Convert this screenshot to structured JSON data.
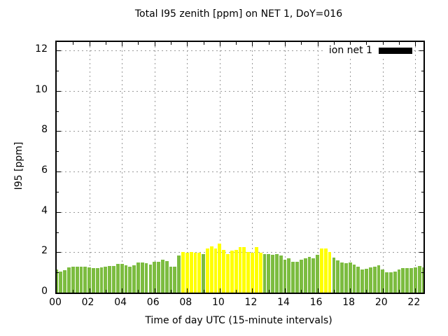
{
  "title": "Total I95 zenith [ppm] on NET 1, DoY=016",
  "legend": {
    "label": "ion net 1",
    "swatch_color": "#000000"
  },
  "x_axis": {
    "label": "Time of day UTC (15-minute intervals)",
    "tick_labels": [
      "00",
      "02",
      "04",
      "06",
      "08",
      "10",
      "12",
      "14",
      "16",
      "18",
      "20",
      "22"
    ]
  },
  "y_axis": {
    "label": "I95 [ppm]",
    "tick_labels": [
      "0",
      "2",
      "4",
      "6",
      "8",
      "10",
      "12"
    ]
  },
  "colors": {
    "bar_green": "#7cbc40",
    "bar_yellow": "#ffff00",
    "grid": "#9a9a9a",
    "axis": "#000000",
    "background": "#ffffff",
    "legend_swatch": "#000000"
  },
  "chart_data": {
    "type": "bar",
    "title": "Total I95 zenith [ppm] on NET 1, DoY=016",
    "xlabel": "Time of day UTC (15-minute intervals)",
    "ylabel": "I95 [ppm]",
    "legend_position": "top-right-inside",
    "grid": true,
    "xlim_hours": [
      0,
      22.5
    ],
    "ylim": [
      0,
      12.42
    ],
    "x_step_hours": 0.25,
    "times": [
      "00:00",
      "00:15",
      "00:30",
      "00:45",
      "01:00",
      "01:15",
      "01:30",
      "01:45",
      "02:00",
      "02:15",
      "02:30",
      "02:45",
      "03:00",
      "03:15",
      "03:30",
      "03:45",
      "04:00",
      "04:15",
      "04:30",
      "04:45",
      "05:00",
      "05:15",
      "05:30",
      "05:45",
      "06:00",
      "06:15",
      "06:30",
      "06:45",
      "07:00",
      "07:15",
      "07:30",
      "07:45",
      "08:00",
      "08:15",
      "08:30",
      "08:45",
      "09:00",
      "09:15",
      "09:30",
      "09:45",
      "10:00",
      "10:15",
      "10:30",
      "10:45",
      "11:00",
      "11:15",
      "11:30",
      "11:45",
      "12:00",
      "12:15",
      "12:30",
      "12:45",
      "13:00",
      "13:15",
      "13:30",
      "13:45",
      "14:00",
      "14:15",
      "14:30",
      "14:45",
      "15:00",
      "15:15",
      "15:30",
      "15:45",
      "16:00",
      "16:15",
      "16:30",
      "16:45",
      "17:00",
      "17:15",
      "17:30",
      "17:45",
      "18:00",
      "18:15",
      "18:30",
      "18:45",
      "19:00",
      "19:15",
      "19:30",
      "19:45",
      "20:00",
      "20:15",
      "20:30",
      "20:45",
      "21:00",
      "21:15",
      "21:30",
      "21:45",
      "22:00",
      "22:15",
      "22:30"
    ],
    "series": [
      {
        "name": "ion net 1",
        "values": [
          1.15,
          1.05,
          1.1,
          1.25,
          1.3,
          1.3,
          1.3,
          1.3,
          1.25,
          1.2,
          1.2,
          1.25,
          1.3,
          1.33,
          1.33,
          1.43,
          1.43,
          1.35,
          1.28,
          1.35,
          1.49,
          1.49,
          1.46,
          1.39,
          1.51,
          1.53,
          1.62,
          1.55,
          1.28,
          1.3,
          1.85,
          2.0,
          1.97,
          2.03,
          1.98,
          1.97,
          1.9,
          2.18,
          2.3,
          2.2,
          2.43,
          2.12,
          1.92,
          2.09,
          2.12,
          2.27,
          2.27,
          2.01,
          1.97,
          2.24,
          1.97,
          1.92,
          1.92,
          1.89,
          1.92,
          1.83,
          1.62,
          1.69,
          1.54,
          1.54,
          1.62,
          1.69,
          1.77,
          1.69,
          1.89,
          2.2,
          2.2,
          2.01,
          1.75,
          1.6,
          1.49,
          1.45,
          1.49,
          1.4,
          1.29,
          1.14,
          1.19,
          1.25,
          1.29,
          1.37,
          1.14,
          1.0,
          1.0,
          1.05,
          1.14,
          1.22,
          1.22,
          1.22,
          1.25,
          1.31,
          1.25
        ],
        "yellow_indices": [
          31,
          32,
          33,
          34,
          35,
          37,
          38,
          39,
          40,
          41,
          42,
          43,
          44,
          45,
          46,
          47,
          48,
          49,
          50,
          65,
          66,
          67
        ]
      }
    ]
  }
}
